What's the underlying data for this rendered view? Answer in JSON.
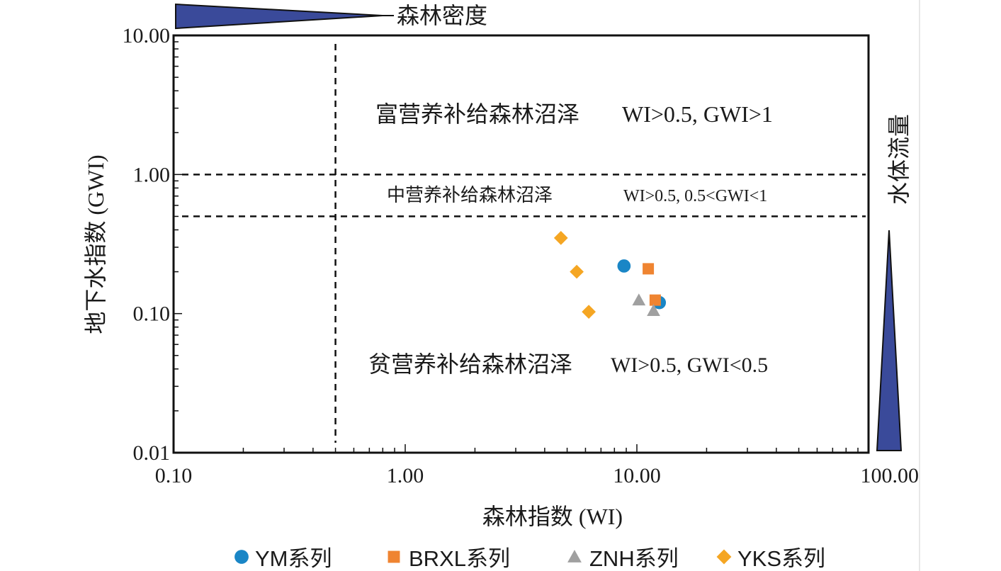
{
  "chart_data": {
    "type": "scatter",
    "xscale": "log",
    "yscale": "log",
    "xlim": [
      0.1,
      100
    ],
    "ylim": [
      0.01,
      10
    ],
    "xlabel": "森林指数 (WI)",
    "ylabel": "地下水指数 (GWI)",
    "x_ticks": [
      {
        "value": 0.1,
        "label": "0.10"
      },
      {
        "value": 1,
        "label": "1.00"
      },
      {
        "value": 10,
        "label": "10.00"
      },
      {
        "value": 100,
        "label": "100.00"
      }
    ],
    "y_ticks": [
      {
        "value": 0.01,
        "label": "0.01"
      },
      {
        "value": 0.1,
        "label": "0.10"
      },
      {
        "value": 1,
        "label": "1.00"
      },
      {
        "value": 10,
        "label": "10.00"
      }
    ],
    "threshold_lines": {
      "x": 0.5,
      "y": [
        0.5,
        1
      ]
    },
    "zones": [
      {
        "name": "富营养补给森林沼泽",
        "condition": "WI>0.5,  GWI>1"
      },
      {
        "name": "中营养补给森林沼泽",
        "condition": "WI>0.5, 0.5<GWI<1"
      },
      {
        "name": "贫营养补给森林沼泽",
        "condition": "WI>0.5, GWI<0.5"
      }
    ],
    "top_arrow_label": "森林密度",
    "right_arrow_label": "水体流量",
    "grid": false,
    "legend_position": "bottom",
    "series": [
      {
        "name": "YM系列",
        "marker": "circle",
        "color": "#1a86c6",
        "points": [
          {
            "x": 8.8,
            "y": 0.22
          },
          {
            "x": 12.5,
            "y": 0.12
          }
        ]
      },
      {
        "name": "BRXL系列",
        "marker": "square",
        "color": "#ef8431",
        "points": [
          {
            "x": 11.2,
            "y": 0.21
          },
          {
            "x": 12.0,
            "y": 0.125
          }
        ]
      },
      {
        "name": "ZNH系列",
        "marker": "triangle",
        "color": "#a0a0a0",
        "points": [
          {
            "x": 10.2,
            "y": 0.125
          },
          {
            "x": 11.8,
            "y": 0.105
          }
        ]
      },
      {
        "name": "YKS系列",
        "marker": "diamond",
        "color": "#f5a623",
        "points": [
          {
            "x": 4.7,
            "y": 0.35
          },
          {
            "x": 5.5,
            "y": 0.2
          },
          {
            "x": 6.2,
            "y": 0.103
          }
        ]
      }
    ],
    "arrow_color": "#3a4a9a"
  }
}
